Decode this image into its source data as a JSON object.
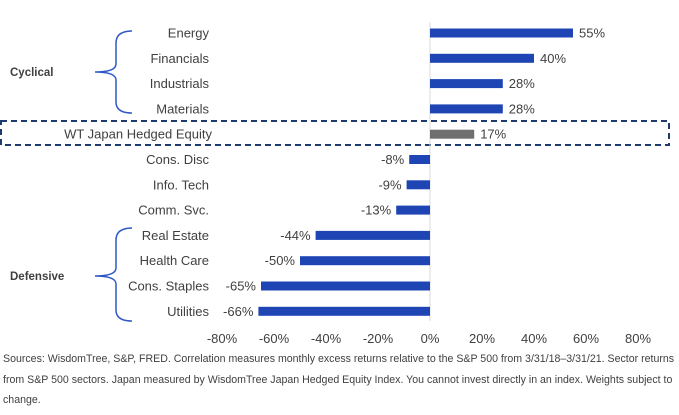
{
  "chart_data": {
    "type": "bar",
    "orientation": "horizontal",
    "categories": [
      "Energy",
      "Financials",
      "Industrials",
      "Materials",
      "WT Japan Hedged Equity",
      "Cons. Disc",
      "Info. Tech",
      "Comm. Svc.",
      "Real Estate",
      "Health Care",
      "Cons. Staples",
      "Utilities"
    ],
    "values": [
      55,
      40,
      28,
      28,
      17,
      -8,
      -9,
      -13,
      -44,
      -50,
      -65,
      -66
    ],
    "value_labels": [
      "55%",
      "40%",
      "28%",
      "28%",
      "17%",
      "-8%",
      "-9%",
      "-13%",
      "-44%",
      "-50%",
      "-65%",
      "-66%"
    ],
    "highlight_category": "WT Japan Hedged Equity",
    "groups": [
      {
        "name": "Cyclical",
        "categories": [
          "Energy",
          "Financials",
          "Industrials",
          "Materials"
        ]
      },
      {
        "name": "Defensive",
        "categories": [
          "Real Estate",
          "Health Care",
          "Cons. Staples",
          "Utilities"
        ]
      }
    ],
    "xlim": [
      -80,
      80
    ],
    "xticks": [
      -80,
      -60,
      -40,
      -20,
      0,
      20,
      40,
      60,
      80
    ],
    "xtick_labels": [
      "-80%",
      "-60%",
      "-40%",
      "-20%",
      "0%",
      "20%",
      "40%",
      "60%",
      "80%"
    ],
    "grid": false,
    "colors": {
      "bar": "#1f45b5",
      "highlight": "#6f6f6f",
      "bracket": "#2f58c4",
      "dashed_box": "#1f3a6e",
      "text": "#404040"
    }
  },
  "footnote": "Sources: WisdomTree, S&P, FRED. Correlation measures monthly excess returns relative to the S&P 500 from 3/31/18–3/31/21. Sector returns from S&P 500 sectors. Japan measured by WisdomTree Japan Hedged Equity Index. You cannot invest directly in an index. Weights subject to change."
}
